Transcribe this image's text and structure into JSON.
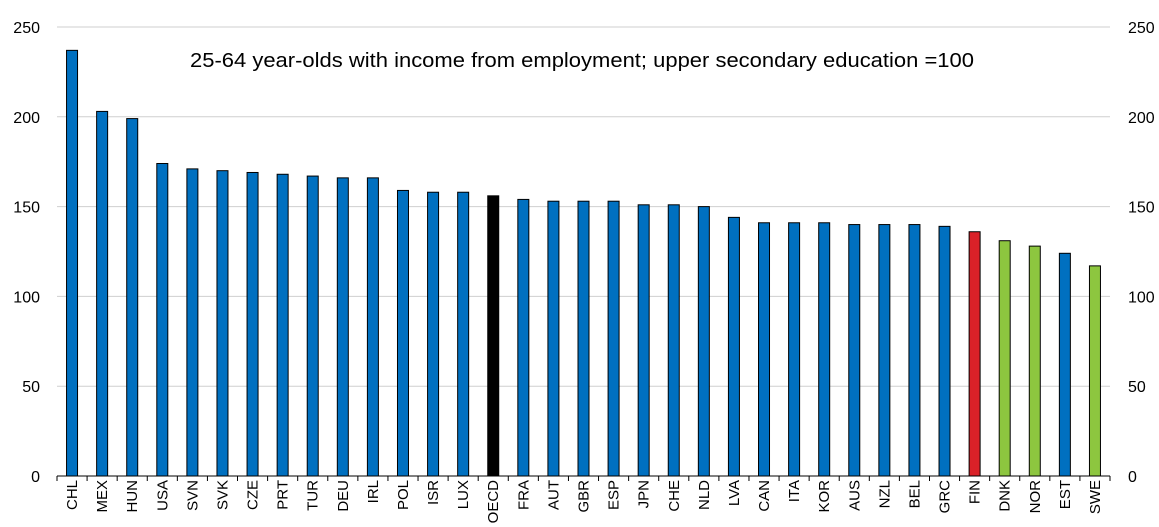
{
  "chart_data": {
    "type": "bar",
    "annotation": "25-64 year-olds with income from employment; upper secondary education =100",
    "ylim": [
      0,
      250
    ],
    "yticks": [
      0,
      50,
      100,
      150,
      200,
      250
    ],
    "grid": true,
    "secondary_axis": true,
    "categories": [
      "CHL",
      "MEX",
      "HUN",
      "USA",
      "SVN",
      "SVK",
      "CZE",
      "PRT",
      "TUR",
      "DEU",
      "IRL",
      "POL",
      "ISR",
      "LUX",
      "OECD",
      "FRA",
      "AUT",
      "GBR",
      "ESP",
      "JPN",
      "CHE",
      "NLD",
      "LVA",
      "CAN",
      "ITA",
      "KOR",
      "AUS",
      "NZL",
      "BEL",
      "GRC",
      "FIN",
      "DNK",
      "NOR",
      "EST",
      "SWE"
    ],
    "values": [
      237,
      203,
      199,
      174,
      171,
      170,
      169,
      168,
      167,
      166,
      166,
      159,
      158,
      158,
      156,
      154,
      153,
      153,
      153,
      151,
      151,
      150,
      144,
      141,
      141,
      141,
      140,
      140,
      140,
      139,
      136,
      131,
      128,
      124,
      117
    ],
    "colors": [
      "#0070C0",
      "#0070C0",
      "#0070C0",
      "#0070C0",
      "#0070C0",
      "#0070C0",
      "#0070C0",
      "#0070C0",
      "#0070C0",
      "#0070C0",
      "#0070C0",
      "#0070C0",
      "#0070C0",
      "#0070C0",
      "#000000",
      "#0070C0",
      "#0070C0",
      "#0070C0",
      "#0070C0",
      "#0070C0",
      "#0070C0",
      "#0070C0",
      "#0070C0",
      "#0070C0",
      "#0070C0",
      "#0070C0",
      "#0070C0",
      "#0070C0",
      "#0070C0",
      "#0070C0",
      "#DA2128",
      "#8DC63F",
      "#8DC63F",
      "#0070C0",
      "#8DC63F"
    ]
  }
}
